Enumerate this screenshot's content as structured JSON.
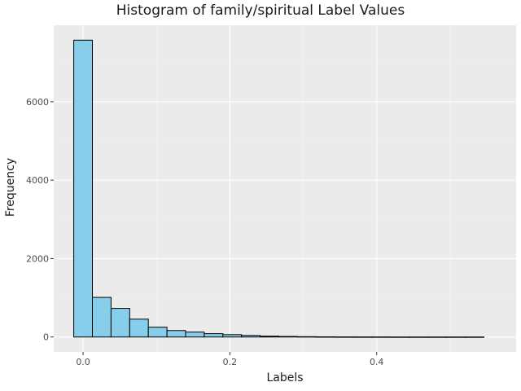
{
  "chart_data": {
    "type": "bar",
    "title": "Histogram of family/spiritual Label Values",
    "xlabel": "Labels",
    "ylabel": "Frequency",
    "bin_width": 0.0254,
    "bin_start": -0.0127,
    "values": [
      7570,
      1010,
      730,
      455,
      250,
      165,
      125,
      85,
      60,
      40,
      22,
      14,
      8,
      5,
      3,
      2,
      2,
      1,
      1,
      1,
      1,
      1
    ],
    "x_ticks": [
      0.0,
      0.2,
      0.4
    ],
    "x_tick_labels": [
      "0.0",
      "0.2",
      "0.4"
    ],
    "y_ticks": [
      0,
      2000,
      4000,
      6000
    ],
    "y_tick_labels": [
      "0",
      "2000",
      "4000",
      "6000"
    ],
    "xlim": [
      -0.04,
      0.59
    ],
    "ylim": [
      -380,
      7950
    ],
    "grid": true,
    "colors": {
      "bar_fill": "#87ceeb",
      "bar_edge": "#000000",
      "panel_bg": "#ebebeb",
      "grid_major": "#ffffff",
      "axis_text": "#4d4d4d"
    }
  }
}
